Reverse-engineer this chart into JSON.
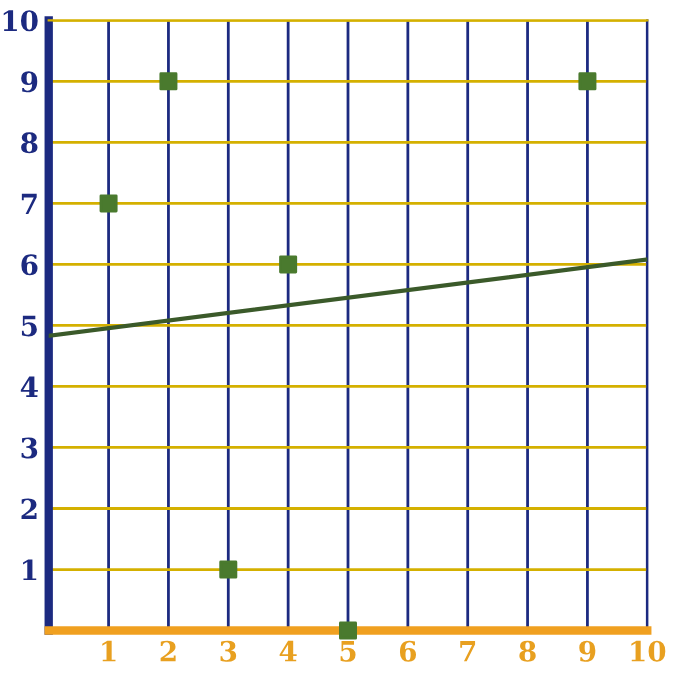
{
  "chart_data": {
    "type": "scatter",
    "xlim": [
      0,
      10
    ],
    "ylim": [
      0,
      10
    ],
    "xticks": [
      1,
      2,
      3,
      4,
      5,
      6,
      7,
      8,
      9,
      10
    ],
    "yticks": [
      1,
      2,
      3,
      4,
      5,
      6,
      7,
      8,
      9,
      10
    ],
    "grid": true,
    "series": [
      {
        "marker": "square",
        "color": "#4a7a2e",
        "x": [
          1,
          2,
          3,
          4,
          5,
          9
        ],
        "values": [
          7,
          9,
          1,
          6,
          0,
          9
        ]
      },
      {
        "type": "line",
        "color": "#3b5a2a",
        "x": [
          0,
          10
        ],
        "values": [
          4.83,
          6.08
        ]
      }
    ]
  }
}
